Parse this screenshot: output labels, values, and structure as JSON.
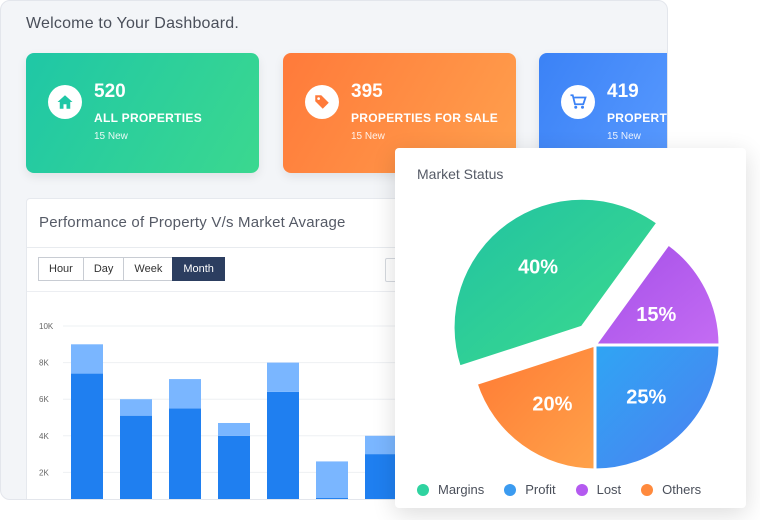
{
  "welcome": "Welcome to Your Dashboard.",
  "cards": [
    {
      "number": "520",
      "label": "ALL PROPERTIES",
      "sub": "15 New",
      "icon": "home-icon"
    },
    {
      "number": "395",
      "label": "PROPERTIES FOR SALE",
      "sub": "15 New",
      "icon": "tag-icon"
    },
    {
      "number": "419",
      "label": "PROPERTIES",
      "sub": "15 New",
      "icon": "cart-icon"
    }
  ],
  "performance": {
    "title": "Performance of Property V/s Market Avarage",
    "buttons": [
      "Hour",
      "Day",
      "Week",
      "Month"
    ],
    "active": "Month"
  },
  "market": {
    "title": "Market Status",
    "legend": [
      {
        "name": "Margins",
        "color": "#2fd3a0"
      },
      {
        "name": "Profit",
        "color": "#3b9bf0"
      },
      {
        "name": "Lost",
        "color": "#b45af0"
      },
      {
        "name": "Others",
        "color": "#ff8a3d"
      }
    ]
  },
  "chart_data": [
    {
      "type": "bar",
      "ylim": [
        0,
        10000
      ],
      "ytick_labels": [
        "10K",
        "8K",
        "6K",
        "4K",
        "2K"
      ],
      "yticks": [
        10000,
        8000,
        6000,
        4000,
        2000
      ],
      "series": [
        {
          "values": [
            7400,
            5100,
            5500,
            4000,
            6400,
            600,
            3000
          ]
        },
        {
          "values": [
            1600,
            900,
            1600,
            700,
            1600,
            2000,
            1000
          ]
        }
      ],
      "colors": [
        "#1f7ff0",
        "#7ab6ff"
      ]
    },
    {
      "type": "pie",
      "labels": [
        "Margins",
        "Profit",
        "Lost",
        "Others"
      ],
      "values": [
        40,
        25,
        15,
        20
      ],
      "display": [
        "40%",
        "25%",
        "15%",
        "20%"
      ]
    }
  ]
}
